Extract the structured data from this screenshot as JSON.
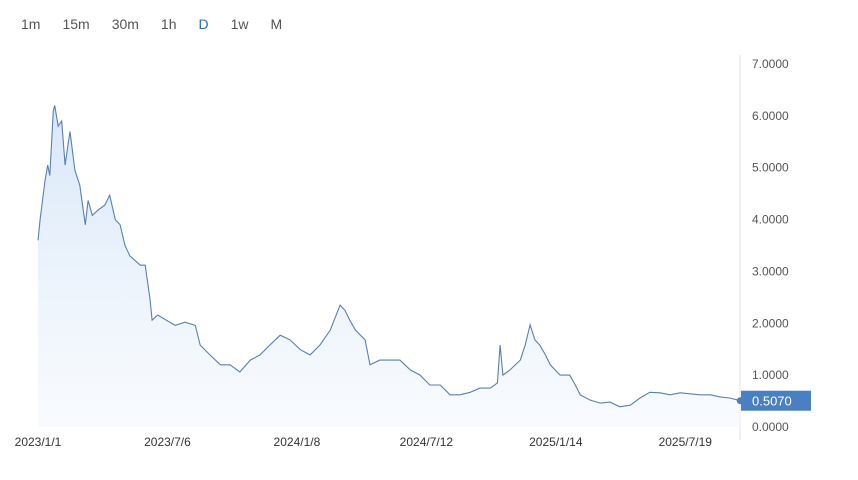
{
  "intervals": [
    {
      "label": "1m"
    },
    {
      "label": "15m"
    },
    {
      "label": "30m"
    },
    {
      "label": "1h"
    },
    {
      "label": "D",
      "active": true
    },
    {
      "label": "1w"
    },
    {
      "label": "M"
    }
  ],
  "colors": {
    "line": "#5b7fb0",
    "fill": "#dce9f8",
    "active_tab": "#2a6fbf",
    "price_badge": "#4a7fc1"
  },
  "chart_data": {
    "type": "area",
    "ylim": [
      0,
      7
    ],
    "y_ticks": [
      "0.0000",
      "1.0000",
      "2.0000",
      "3.0000",
      "4.0000",
      "5.0000",
      "6.0000",
      "7.0000"
    ],
    "x_ticks": [
      "2023/1/1",
      "2023/7/6",
      "2024/1/8",
      "2024/7/12",
      "2025/1/14",
      "2025/7/19"
    ],
    "last_value": "0.5070",
    "grid": false,
    "points": [
      [
        "2023-01-01",
        3.6
      ],
      [
        "2023-01-04",
        4.0
      ],
      [
        "2023-01-11",
        4.75
      ],
      [
        "2023-01-15",
        5.05
      ],
      [
        "2023-01-18",
        4.85
      ],
      [
        "2023-01-23",
        6.1
      ],
      [
        "2023-01-25",
        6.2
      ],
      [
        "2023-01-30",
        5.8
      ],
      [
        "2023-02-04",
        5.9
      ],
      [
        "2023-02-09",
        5.05
      ],
      [
        "2023-02-13",
        5.43
      ],
      [
        "2023-02-16",
        5.7
      ],
      [
        "2023-02-23",
        4.95
      ],
      [
        "2023-03-02",
        4.66
      ],
      [
        "2023-03-10",
        3.9
      ],
      [
        "2023-03-14",
        4.37
      ],
      [
        "2023-03-20",
        4.08
      ],
      [
        "2023-03-28",
        4.18
      ],
      [
        "2023-04-07",
        4.28
      ],
      [
        "2023-04-14",
        4.47
      ],
      [
        "2023-04-22",
        4.0
      ],
      [
        "2023-04-29",
        3.9
      ],
      [
        "2023-05-06",
        3.5
      ],
      [
        "2023-05-13",
        3.3
      ],
      [
        "2023-05-28",
        3.12
      ],
      [
        "2023-06-04",
        3.12
      ],
      [
        "2023-06-11",
        2.45
      ],
      [
        "2023-06-14",
        2.06
      ],
      [
        "2023-06-22",
        2.16
      ],
      [
        "2023-07-17",
        1.96
      ],
      [
        "2023-07-31",
        2.02
      ],
      [
        "2023-08-15",
        1.96
      ],
      [
        "2023-08-22",
        1.58
      ],
      [
        "2023-09-05",
        1.39
      ],
      [
        "2023-09-20",
        1.2
      ],
      [
        "2023-10-04",
        1.2
      ],
      [
        "2023-10-18",
        1.06
      ],
      [
        "2023-11-02",
        1.29
      ],
      [
        "2023-11-16",
        1.39
      ],
      [
        "2023-11-30",
        1.58
      ],
      [
        "2023-12-15",
        1.77
      ],
      [
        "2023-12-29",
        1.68
      ],
      [
        "2024-01-13",
        1.49
      ],
      [
        "2024-01-27",
        1.39
      ],
      [
        "2024-02-10",
        1.58
      ],
      [
        "2024-02-25",
        1.87
      ],
      [
        "2024-03-10",
        2.35
      ],
      [
        "2024-03-17",
        2.25
      ],
      [
        "2024-03-24",
        2.06
      ],
      [
        "2024-04-01",
        1.87
      ],
      [
        "2024-04-15",
        1.68
      ],
      [
        "2024-04-22",
        1.2
      ],
      [
        "2024-05-06",
        1.29
      ],
      [
        "2024-06-04",
        1.29
      ],
      [
        "2024-06-19",
        1.1
      ],
      [
        "2024-07-03",
        1.0
      ],
      [
        "2024-07-17",
        0.81
      ],
      [
        "2024-08-01",
        0.81
      ],
      [
        "2024-08-15",
        0.62
      ],
      [
        "2024-08-29",
        0.62
      ],
      [
        "2024-09-13",
        0.67
      ],
      [
        "2024-09-27",
        0.75
      ],
      [
        "2024-10-12",
        0.75
      ],
      [
        "2024-10-22",
        0.85
      ],
      [
        "2024-10-26",
        1.58
      ],
      [
        "2024-10-30",
        1.0
      ],
      [
        "2024-11-09",
        1.1
      ],
      [
        "2024-11-24",
        1.29
      ],
      [
        "2024-12-01",
        1.58
      ],
      [
        "2024-12-08",
        1.97
      ],
      [
        "2024-12-15",
        1.68
      ],
      [
        "2024-12-22",
        1.58
      ],
      [
        "2024-12-30",
        1.39
      ],
      [
        "2025-01-06",
        1.2
      ],
      [
        "2025-01-20",
        1.0
      ],
      [
        "2025-02-03",
        1.0
      ],
      [
        "2025-02-11",
        0.81
      ],
      [
        "2025-02-18",
        0.62
      ],
      [
        "2025-03-04",
        0.52
      ],
      [
        "2025-03-19",
        0.46
      ],
      [
        "2025-04-02",
        0.48
      ],
      [
        "2025-04-16",
        0.39
      ],
      [
        "2025-05-01",
        0.42
      ],
      [
        "2025-05-15",
        0.56
      ],
      [
        "2025-05-29",
        0.67
      ],
      [
        "2025-06-13",
        0.66
      ],
      [
        "2025-06-27",
        0.62
      ],
      [
        "2025-07-12",
        0.66
      ],
      [
        "2025-07-26",
        0.64
      ],
      [
        "2025-08-09",
        0.62
      ],
      [
        "2025-08-24",
        0.62
      ],
      [
        "2025-09-07",
        0.58
      ],
      [
        "2025-09-21",
        0.56
      ],
      [
        "2025-10-06",
        0.507
      ]
    ]
  }
}
